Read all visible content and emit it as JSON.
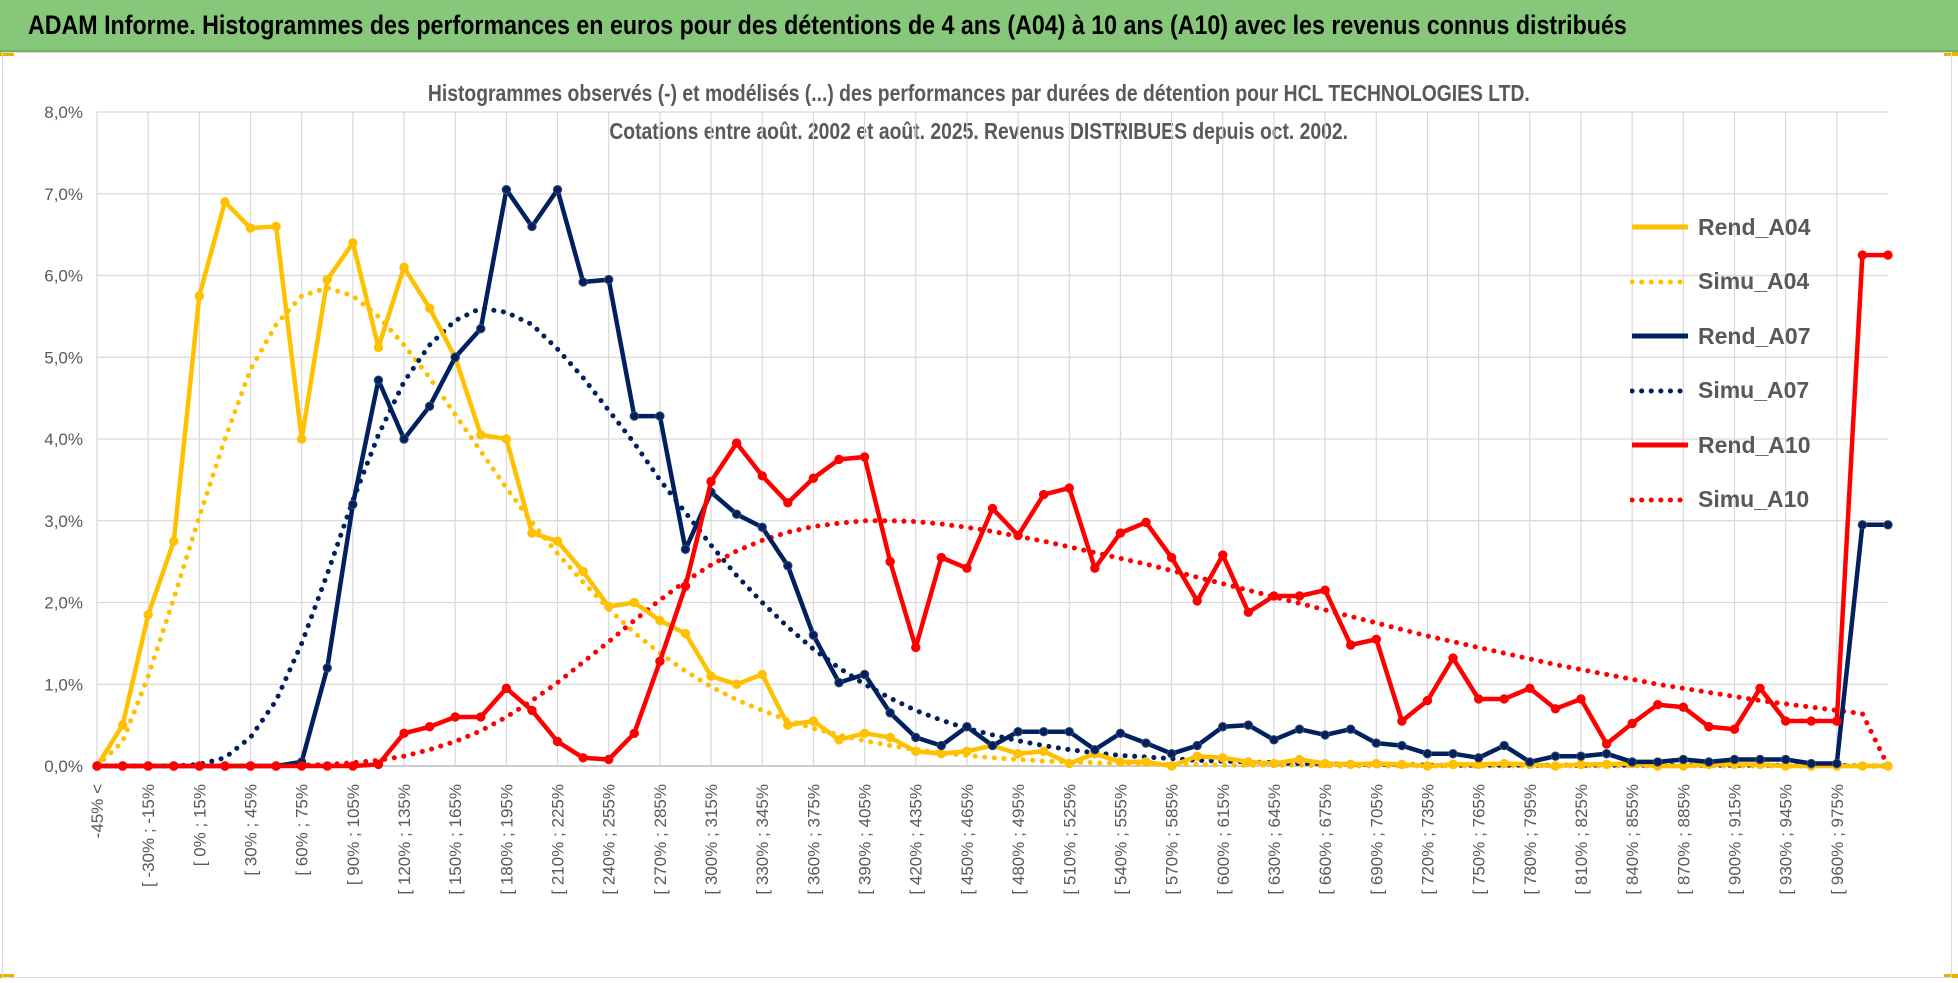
{
  "banner": {
    "title": "ADAM Informe. Histogrammes des performances en euros pour des détentions de 4 ans (A04) à 10 ans (A10) avec les revenus connus distribués"
  },
  "colors": {
    "banner": "#86c77a",
    "grid": "#d9d9d9",
    "axis_text": "#595959",
    "A04": "#ffc000",
    "A07": "#002060",
    "A10": "#ff0000"
  },
  "chart_data": {
    "type": "line",
    "title": "Histogrammes observés (-) et modélisés (...) des performances par durées de détention pour HCL TECHNOLOGIES LTD.",
    "subtitle": "Cotations entre août. 2002 et août. 2025.  Revenus DISTRIBUES depuis oct. 2002.",
    "xlabel": "",
    "ylabel": "",
    "ylim": [
      0,
      8
    ],
    "yticks": [
      "0,0%",
      "1,0%",
      "2,0%",
      "3,0%",
      "4,0%",
      "5,0%",
      "6,0%",
      "7,0%",
      "8,0%"
    ],
    "grid": true,
    "legend_position": "right",
    "x_tick_labels": [
      "-45% <",
      "[ -30% ; -15%",
      "[ 0% ; 15%",
      "[ 30% ; 45%",
      "[ 60% ; 75%",
      "[ 90% ; 105%",
      "[ 120% ; 135%",
      "[ 150% ; 165%",
      "[ 180% ; 195%",
      "[ 210% ; 225%",
      "[ 240% ; 255%",
      "[ 270% ; 285%",
      "[ 300% ; 315%",
      "[ 330% ; 345%",
      "[ 360% ; 375%",
      "[ 390% ; 405%",
      "[ 420% ; 435%",
      "[ 450% ; 465%",
      "[ 480% ; 495%",
      "[ 510% ; 525%",
      "[ 540% ; 555%",
      "[ 570% ; 585%",
      "[ 600% ; 615%",
      "[ 630% ; 645%",
      "[ 660% ; 675%",
      "[ 690% ; 705%",
      "[ 720% ; 735%",
      "[ 750% ; 765%",
      "[ 780% ; 795%",
      "[ 810% ; 825%",
      "[ 840% ; 855%",
      "[ 870% ; 885%",
      "[ 900% ; 915%",
      "[ 930% ; 945%",
      "[ 960% ; 975%"
    ],
    "categories_count": 71,
    "series": [
      {
        "name": "Rend_A04",
        "color_key": "A04",
        "style": "solid",
        "values": [
          0,
          0.5,
          1.85,
          2.75,
          5.75,
          6.9,
          6.58,
          6.6,
          4.0,
          5.95,
          6.4,
          5.12,
          6.1,
          5.6,
          5.0,
          4.05,
          4.0,
          2.85,
          2.75,
          2.38,
          1.95,
          2.0,
          1.78,
          1.62,
          1.1,
          1.0,
          1.12,
          0.5,
          0.55,
          0.32,
          0.4,
          0.35,
          0.18,
          0.15,
          0.18,
          0.25,
          0.15,
          0.18,
          0.03,
          0.15,
          0.05,
          0.05,
          0.0,
          0.12,
          0.1,
          0.05,
          0.03,
          0.08,
          0.03,
          0.02,
          0.03,
          0.02,
          0.0,
          0.02,
          0.02,
          0.03,
          0.02,
          0.0,
          0.02,
          0.02,
          0.03,
          0.0,
          0.0,
          0.02,
          0.02,
          0.02,
          0.0,
          0.0,
          0.0,
          0.0,
          0.0
        ]
      },
      {
        "name": "Simu_A04",
        "color_key": "A04",
        "style": "dotted",
        "values": [
          0.0,
          0.3,
          1.1,
          2.05,
          3.05,
          4.0,
          4.85,
          5.4,
          5.75,
          5.85,
          5.75,
          5.5,
          5.15,
          4.75,
          4.3,
          3.85,
          3.4,
          2.98,
          2.6,
          2.25,
          1.92,
          1.63,
          1.38,
          1.16,
          0.97,
          0.81,
          0.68,
          0.56,
          0.46,
          0.38,
          0.31,
          0.25,
          0.2,
          0.16,
          0.13,
          0.1,
          0.08,
          0.06,
          0.05,
          0.04,
          0.03,
          0.02,
          0.02,
          0.02,
          0.01,
          0.01,
          0.01,
          0.01,
          0.0,
          0.0,
          0.0,
          0.0,
          0.0,
          0.0,
          0.0,
          0.0,
          0.0,
          0.0,
          0.0,
          0.0,
          0.0,
          0.0,
          0.0,
          0.0,
          0.0,
          0.0,
          0.0,
          0.0,
          0.0,
          0.0,
          0.0
        ]
      },
      {
        "name": "Rend_A07",
        "color_key": "A07",
        "style": "solid",
        "values": [
          0,
          0,
          0,
          0,
          0,
          0,
          0,
          0,
          0.05,
          1.2,
          3.2,
          4.72,
          4.0,
          4.4,
          5.0,
          5.35,
          7.05,
          6.6,
          7.05,
          5.92,
          5.95,
          4.28,
          4.28,
          2.65,
          3.35,
          3.08,
          2.92,
          2.45,
          1.6,
          1.02,
          1.12,
          0.65,
          0.35,
          0.25,
          0.48,
          0.25,
          0.42,
          0.42,
          0.42,
          0.2,
          0.4,
          0.28,
          0.15,
          0.25,
          0.48,
          0.5,
          0.32,
          0.45,
          0.38,
          0.45,
          0.28,
          0.25,
          0.15,
          0.15,
          0.1,
          0.25,
          0.05,
          0.12,
          0.12,
          0.15,
          0.05,
          0.05,
          0.08,
          0.05,
          0.08,
          0.08,
          0.08,
          0.03,
          0.03,
          2.95,
          2.95
        ]
      },
      {
        "name": "Simu_A07",
        "color_key": "A07",
        "style": "dotted",
        "values": [
          0,
          0,
          0,
          0,
          0.02,
          0.1,
          0.35,
          0.8,
          1.5,
          2.35,
          3.25,
          4.05,
          4.7,
          5.15,
          5.45,
          5.6,
          5.55,
          5.4,
          5.1,
          4.75,
          4.35,
          3.95,
          3.5,
          3.1,
          2.7,
          2.33,
          2.0,
          1.7,
          1.43,
          1.2,
          1.0,
          0.83,
          0.68,
          0.56,
          0.46,
          0.38,
          0.31,
          0.25,
          0.2,
          0.16,
          0.13,
          0.11,
          0.09,
          0.07,
          0.06,
          0.05,
          0.04,
          0.03,
          0.03,
          0.02,
          0.02,
          0.02,
          0.01,
          0.01,
          0.01,
          0.01,
          0.01,
          0.01,
          0.01,
          0.01,
          0.01,
          0.01,
          0.01,
          0.01,
          0.01,
          0.01,
          0.01,
          0.01,
          0.01,
          0.0,
          0.0
        ]
      },
      {
        "name": "Rend_A10",
        "color_key": "A10",
        "style": "solid",
        "values": [
          0,
          0,
          0,
          0,
          0,
          0,
          0,
          0,
          0,
          0,
          0,
          0.02,
          0.4,
          0.48,
          0.6,
          0.6,
          0.95,
          0.68,
          0.3,
          0.1,
          0.08,
          0.4,
          1.28,
          2.2,
          3.48,
          3.95,
          3.55,
          3.22,
          3.52,
          3.75,
          3.78,
          2.5,
          1.45,
          2.55,
          2.42,
          3.15,
          2.82,
          3.32,
          3.4,
          2.42,
          2.85,
          2.98,
          2.55,
          2.02,
          2.58,
          1.88,
          2.08,
          2.08,
          2.15,
          1.48,
          1.55,
          0.55,
          0.8,
          1.32,
          0.82,
          0.82,
          0.95,
          0.7,
          0.82,
          0.27,
          0.52,
          0.75,
          0.72,
          0.48,
          0.45,
          0.95,
          0.55,
          0.55,
          0.55,
          6.25,
          6.25
        ]
      },
      {
        "name": "Simu_A10",
        "color_key": "A10",
        "style": "dotted",
        "values": [
          0,
          0,
          0,
          0,
          0,
          0,
          0,
          0,
          0.01,
          0.02,
          0.04,
          0.07,
          0.12,
          0.2,
          0.3,
          0.43,
          0.6,
          0.8,
          1.02,
          1.27,
          1.52,
          1.78,
          2.03,
          2.26,
          2.46,
          2.63,
          2.76,
          2.86,
          2.93,
          2.97,
          3.0,
          3.0,
          2.99,
          2.96,
          2.92,
          2.87,
          2.81,
          2.75,
          2.68,
          2.61,
          2.54,
          2.47,
          2.39,
          2.31,
          2.23,
          2.15,
          2.07,
          1.99,
          1.91,
          1.83,
          1.75,
          1.67,
          1.59,
          1.52,
          1.45,
          1.38,
          1.31,
          1.24,
          1.18,
          1.12,
          1.06,
          1.0,
          0.95,
          0.9,
          0.85,
          0.8,
          0.76,
          0.72,
          0.68,
          0.64,
          0.0
        ]
      }
    ]
  }
}
